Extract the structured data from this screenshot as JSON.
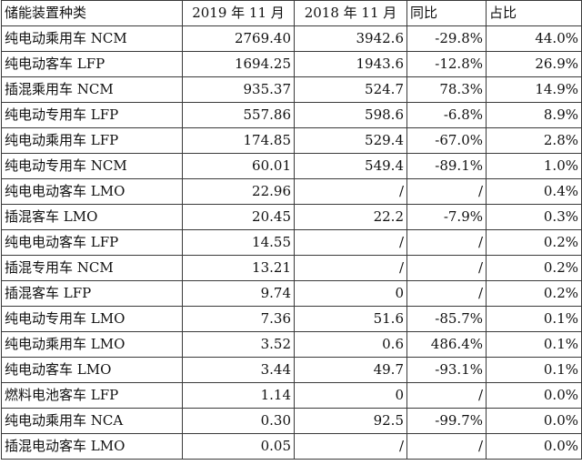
{
  "headers": [
    "储能装置种类",
    "2019 年 11 月",
    "2018 年 11 月",
    "同比",
    "占比"
  ],
  "rows": [
    [
      "纯电动乘用车 NCM",
      "2769.40",
      "3942.6",
      "-29.8%",
      "44.0%"
    ],
    [
      "纯电动客车 LFP",
      "1694.25",
      "1943.6",
      "-12.8%",
      "26.9%"
    ],
    [
      "插混乘用车 NCM",
      "935.37",
      "524.7",
      "78.3%",
      "14.9%"
    ],
    [
      "纯电动专用车 LFP",
      "557.86",
      "598.6",
      "-6.8%",
      "8.9%"
    ],
    [
      "纯电动乘用车 LFP",
      "174.85",
      "529.4",
      "-67.0%",
      "2.8%"
    ],
    [
      "纯电动专用车 NCM",
      "60.01",
      "549.4",
      "-89.1%",
      "1.0%"
    ],
    [
      "纯电电动客车 LMO",
      "22.96",
      "/",
      "/",
      "0.4%"
    ],
    [
      "插混客车 LMO",
      "20.45",
      "22.2",
      "-7.9%",
      "0.3%"
    ],
    [
      "纯电电动客车 LFP",
      "14.55",
      "/",
      "/",
      "0.2%"
    ],
    [
      "插混专用车 NCM",
      "13.21",
      "/",
      "/",
      "0.2%"
    ],
    [
      "插混客车 LFP",
      "9.74",
      "0",
      "/",
      "0.2%"
    ],
    [
      "纯电动专用车 LMO",
      "7.36",
      "51.6",
      "-85.7%",
      "0.1%"
    ],
    [
      "纯电动乘用车 LMO",
      "3.52",
      "0.6",
      "486.4%",
      "0.1%"
    ],
    [
      "纯电动客车 LMO",
      "3.44",
      "49.7",
      "-93.1%",
      "0.1%"
    ],
    [
      "燃料电池客车 LFP",
      "1.14",
      "0",
      "/",
      "0.0%"
    ],
    [
      "纯电动乘用车 NCA",
      "0.30",
      "92.5",
      "-99.7%",
      "0.0%"
    ],
    [
      "插混电动客车 LMO",
      "0.05",
      "/",
      "/",
      "0.0%"
    ]
  ]
}
